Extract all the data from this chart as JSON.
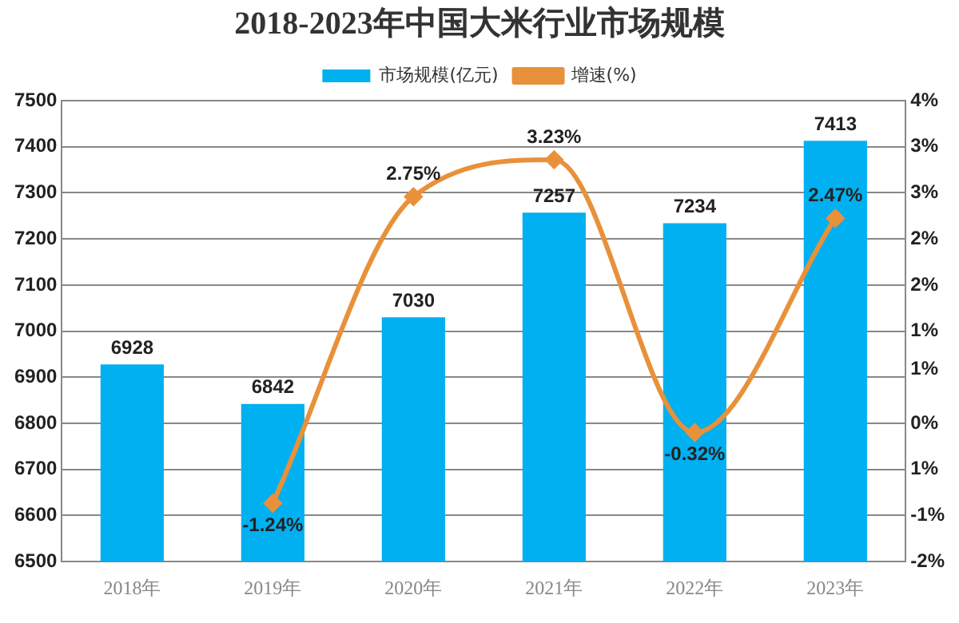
{
  "chart_data": {
    "type": "bar",
    "title": "2018-2023年中国大米行业市场规模",
    "categories": [
      "2018年",
      "2019年",
      "2020年",
      "2021年",
      "2022年",
      "2023年"
    ],
    "series": [
      {
        "name": "市场规模(亿元)",
        "color": "#00b0f0",
        "values": [
          6928,
          6842,
          7030,
          7257,
          7234,
          7413
        ]
      },
      {
        "name": "增速(%)",
        "type": "line",
        "axis": "y2",
        "color": "#e8913a",
        "values": [
          null,
          -1.24,
          2.75,
          3.23,
          -0.32,
          2.47
        ],
        "value_labels": [
          null,
          "-1.24%",
          "2.75%",
          "3.23%",
          "-0.32%",
          "2.47%"
        ],
        "marker": "diamond"
      }
    ],
    "ylim": [
      6500,
      7500
    ],
    "yticks": [
      6500,
      6600,
      6700,
      6800,
      6900,
      7000,
      7100,
      7200,
      7300,
      7400,
      7500
    ],
    "y2lim": [
      -2,
      4
    ],
    "y2ticks": [
      {
        "value": -2,
        "label": "-2%"
      },
      {
        "value": -1.4,
        "label": "-1%"
      },
      {
        "value": -0.8,
        "label": "1%"
      },
      {
        "value": -0.2,
        "label": "0%"
      },
      {
        "value": 0.5,
        "label": "1%"
      },
      {
        "value": 1,
        "label": "1%"
      },
      {
        "value": 1.6,
        "label": "2%"
      },
      {
        "value": 2.2,
        "label": "2%"
      },
      {
        "value": 2.8,
        "label": "3%"
      },
      {
        "value": 3.4,
        "label": "3%"
      },
      {
        "value": 4,
        "label": "4%"
      }
    ],
    "grid": "y",
    "legend": "top",
    "data_labels": true
  }
}
